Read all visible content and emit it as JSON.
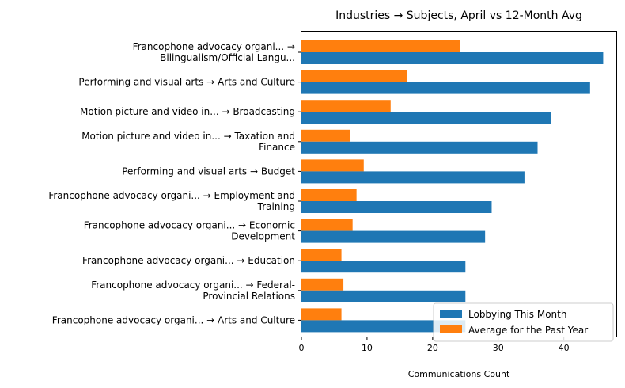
{
  "chart_data": {
    "type": "bar",
    "orientation": "horizontal",
    "title": "Industries → Subjects, April vs 12-Month Avg",
    "xlabel": "Communications Count",
    "ylabel": "",
    "xlim": [
      0,
      48
    ],
    "x_ticks": [
      0,
      10,
      20,
      30,
      40
    ],
    "grid": false,
    "legend_position": "lower-right",
    "categories": [
      [
        "Francophone advocacy organi... →",
        "Bilingualism/Official Langu..."
      ],
      [
        "Performing and visual arts → Arts and Culture"
      ],
      [
        "Motion picture and video in... → Broadcasting"
      ],
      [
        "Motion picture and video in... → Taxation and",
        "Finance"
      ],
      [
        "Performing and visual arts → Budget"
      ],
      [
        "Francophone advocacy organi... → Employment and",
        "Training"
      ],
      [
        "Francophone advocacy organi... → Economic",
        "Development"
      ],
      [
        "Francophone advocacy organi... → Education"
      ],
      [
        "Francophone advocacy organi... → Federal-",
        "Provincial Relations"
      ],
      [
        "Francophone advocacy organi... → Arts and Culture"
      ]
    ],
    "series": [
      {
        "name": "Lobbying This Month",
        "color": "#1f77b4",
        "values": [
          46,
          44,
          38,
          36,
          34,
          29,
          28,
          25,
          25,
          25
        ]
      },
      {
        "name": "Average for the Past Year",
        "color": "#ff7f0e",
        "values": [
          24.2,
          16.1,
          13.6,
          7.4,
          9.5,
          8.4,
          7.8,
          6.1,
          6.4,
          6.1
        ]
      }
    ]
  }
}
